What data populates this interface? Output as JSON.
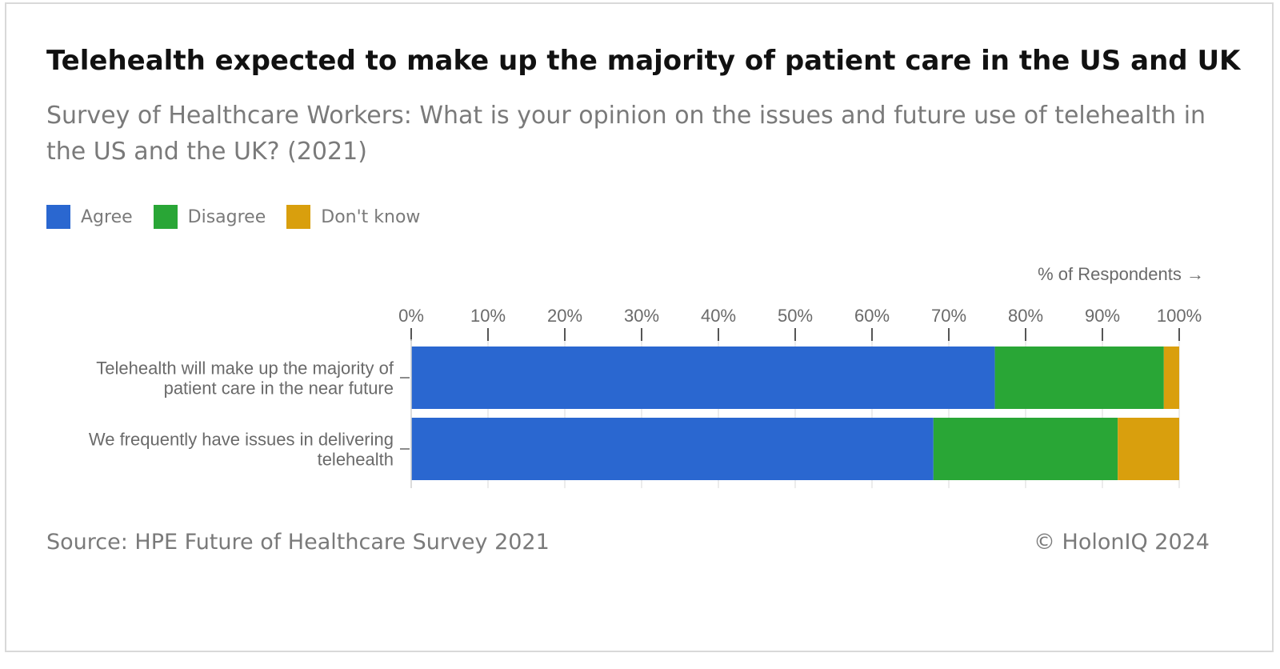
{
  "header": {
    "title": "Telehealth expected to make up the majority of patient care in the US and UK",
    "subtitle": "Survey of Healthcare Workers: What is your opinion on the issues and future use of telehealth in the US and the UK? (2021)"
  },
  "legend": [
    {
      "label": "Agree",
      "color": "#2a67d0"
    },
    {
      "label": "Disagree",
      "color": "#29a636"
    },
    {
      "label": "Don't know",
      "color": "#d99f0d"
    }
  ],
  "footer": {
    "source": "Source: HPE Future of Healthcare Survey 2021",
    "copyright": "© HolonIQ 2024"
  },
  "chart_data": {
    "type": "bar",
    "orientation": "horizontal",
    "stacked": true,
    "title": "Telehealth expected to make up the majority of patient care in the US and UK",
    "subtitle": "Survey of Healthcare Workers: What is your opinion on the issues and future use of telehealth in the US and the UK? (2021)",
    "xlabel": "% of Respondents →",
    "ylabel": "",
    "xlim": [
      0,
      100
    ],
    "ticks": [
      "0%",
      "10%",
      "20%",
      "30%",
      "40%",
      "50%",
      "60%",
      "70%",
      "80%",
      "90%",
      "100%"
    ],
    "categories": [
      [
        "Telehealth will make up the majority of",
        "patient care in the near future"
      ],
      [
        "We frequently have issues in delivering",
        "telehealth"
      ]
    ],
    "series": [
      {
        "name": "Agree",
        "color": "#2a67d0",
        "values": [
          76,
          68
        ]
      },
      {
        "name": "Disagree",
        "color": "#29a636",
        "values": [
          22,
          24
        ]
      },
      {
        "name": "Don't know",
        "color": "#d99f0d",
        "values": [
          2,
          8
        ]
      }
    ],
    "grid": true,
    "legend_position": "top-left"
  }
}
